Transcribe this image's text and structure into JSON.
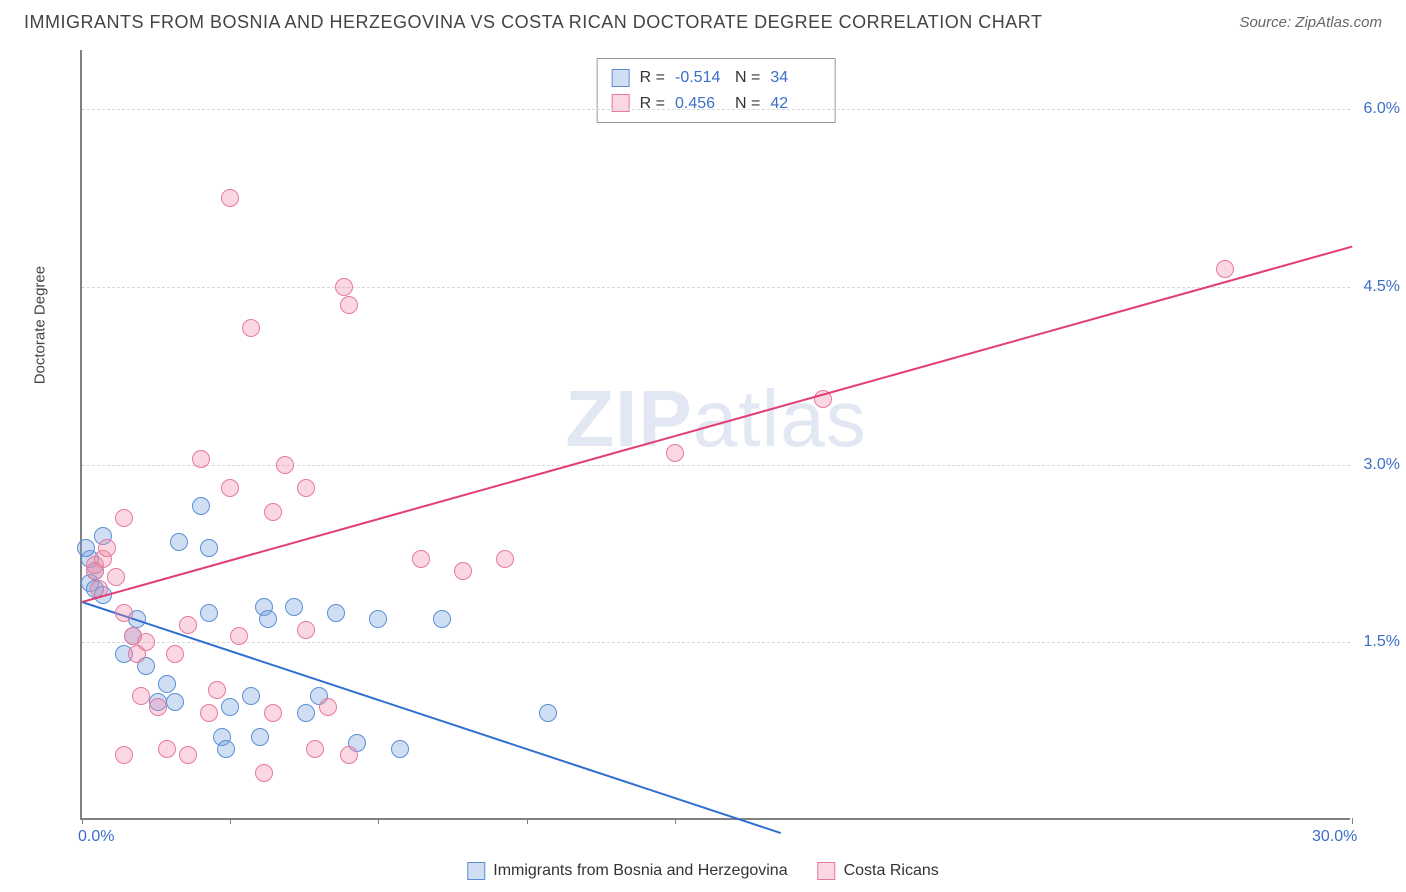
{
  "header": {
    "title": "IMMIGRANTS FROM BOSNIA AND HERZEGOVINA VS COSTA RICAN DOCTORATE DEGREE CORRELATION CHART",
    "source": "Source: ZipAtlas.com"
  },
  "chart": {
    "type": "scatter",
    "ylabel": "Doctorate Degree",
    "watermark_zip": "ZIP",
    "watermark_atlas": "atlas",
    "xlim": [
      0,
      30
    ],
    "ylim": [
      0,
      6.5
    ],
    "xtick_positions": [
      0,
      3.5,
      7,
      10.5,
      14,
      30
    ],
    "xtick_labels_shown": {
      "0": "0.0%",
      "30": "30.0%"
    },
    "ytick_positions": [
      1.5,
      3.0,
      4.5,
      6.0
    ],
    "ytick_labels": [
      "1.5%",
      "3.0%",
      "4.5%",
      "6.0%"
    ],
    "grid_color": "#d8d8d8",
    "axis_color": "#808080",
    "label_color": "#3b6fc9",
    "background_color": "#ffffff",
    "marker_radius": 9,
    "marker_stroke_width": 1.5,
    "series": [
      {
        "name": "Immigrants from Bosnia and Herzegovina",
        "fill_color": "rgba(120,160,220,0.35)",
        "stroke_color": "#5a8fd6",
        "trend": {
          "x1": 0,
          "y1": 1.85,
          "x2": 16.5,
          "y2": -0.1,
          "color": "#2f6fd0"
        },
        "points": [
          [
            0.2,
            2.0
          ],
          [
            0.2,
            2.2
          ],
          [
            0.3,
            2.1
          ],
          [
            0.3,
            1.95
          ],
          [
            0.5,
            2.4
          ],
          [
            0.5,
            1.9
          ],
          [
            1.0,
            1.4
          ],
          [
            1.2,
            1.55
          ],
          [
            1.3,
            1.7
          ],
          [
            1.5,
            1.3
          ],
          [
            1.8,
            1.0
          ],
          [
            2.0,
            1.15
          ],
          [
            2.2,
            1.0
          ],
          [
            2.3,
            2.35
          ],
          [
            2.8,
            2.65
          ],
          [
            3.0,
            2.3
          ],
          [
            3.0,
            1.75
          ],
          [
            3.3,
            0.7
          ],
          [
            3.4,
            0.6
          ],
          [
            3.5,
            0.95
          ],
          [
            4.0,
            1.05
          ],
          [
            4.2,
            0.7
          ],
          [
            4.3,
            1.8
          ],
          [
            4.4,
            1.7
          ],
          [
            5.0,
            1.8
          ],
          [
            5.3,
            0.9
          ],
          [
            5.6,
            1.05
          ],
          [
            6.0,
            1.75
          ],
          [
            6.5,
            0.65
          ],
          [
            7.0,
            1.7
          ],
          [
            7.5,
            0.6
          ],
          [
            8.5,
            1.7
          ],
          [
            11.0,
            0.9
          ],
          [
            0.1,
            2.3
          ]
        ]
      },
      {
        "name": "Costa Ricans",
        "fill_color": "rgba(240,140,170,0.35)",
        "stroke_color": "#e77aa0",
        "trend": {
          "x1": 0,
          "y1": 1.85,
          "x2": 30,
          "y2": 4.85,
          "color": "#e23d74"
        },
        "points": [
          [
            0.3,
            2.1
          ],
          [
            0.3,
            2.15
          ],
          [
            0.4,
            1.95
          ],
          [
            0.5,
            2.2
          ],
          [
            0.6,
            2.3
          ],
          [
            0.8,
            2.05
          ],
          [
            1.0,
            1.75
          ],
          [
            1.0,
            2.55
          ],
          [
            1.0,
            0.55
          ],
          [
            1.2,
            1.55
          ],
          [
            1.3,
            1.4
          ],
          [
            1.4,
            1.05
          ],
          [
            1.5,
            1.5
          ],
          [
            1.8,
            0.95
          ],
          [
            2.0,
            0.6
          ],
          [
            2.2,
            1.4
          ],
          [
            2.5,
            1.65
          ],
          [
            2.5,
            0.55
          ],
          [
            2.8,
            3.05
          ],
          [
            3.0,
            0.9
          ],
          [
            3.2,
            1.1
          ],
          [
            3.5,
            2.8
          ],
          [
            3.5,
            5.25
          ],
          [
            3.7,
            1.55
          ],
          [
            4.0,
            4.15
          ],
          [
            4.3,
            0.4
          ],
          [
            4.5,
            2.6
          ],
          [
            4.5,
            0.9
          ],
          [
            4.8,
            3.0
          ],
          [
            5.3,
            2.8
          ],
          [
            5.3,
            1.6
          ],
          [
            5.5,
            0.6
          ],
          [
            5.8,
            0.95
          ],
          [
            6.2,
            4.5
          ],
          [
            6.3,
            4.35
          ],
          [
            6.3,
            0.55
          ],
          [
            8.0,
            2.2
          ],
          [
            9.0,
            2.1
          ],
          [
            10.0,
            2.2
          ],
          [
            14.0,
            3.1
          ],
          [
            17.5,
            3.55
          ],
          [
            27.0,
            4.65
          ]
        ]
      }
    ],
    "stats_legend": [
      {
        "swatch_fill": "rgba(120,160,220,0.35)",
        "swatch_stroke": "#5a8fd6",
        "r_label": "R =",
        "r_val": "-0.514",
        "n_label": "N =",
        "n_val": "34"
      },
      {
        "swatch_fill": "rgba(240,140,170,0.35)",
        "swatch_stroke": "#e77aa0",
        "r_label": "R =",
        "r_val": "0.456",
        "n_label": "N =",
        "n_val": "42"
      }
    ]
  }
}
